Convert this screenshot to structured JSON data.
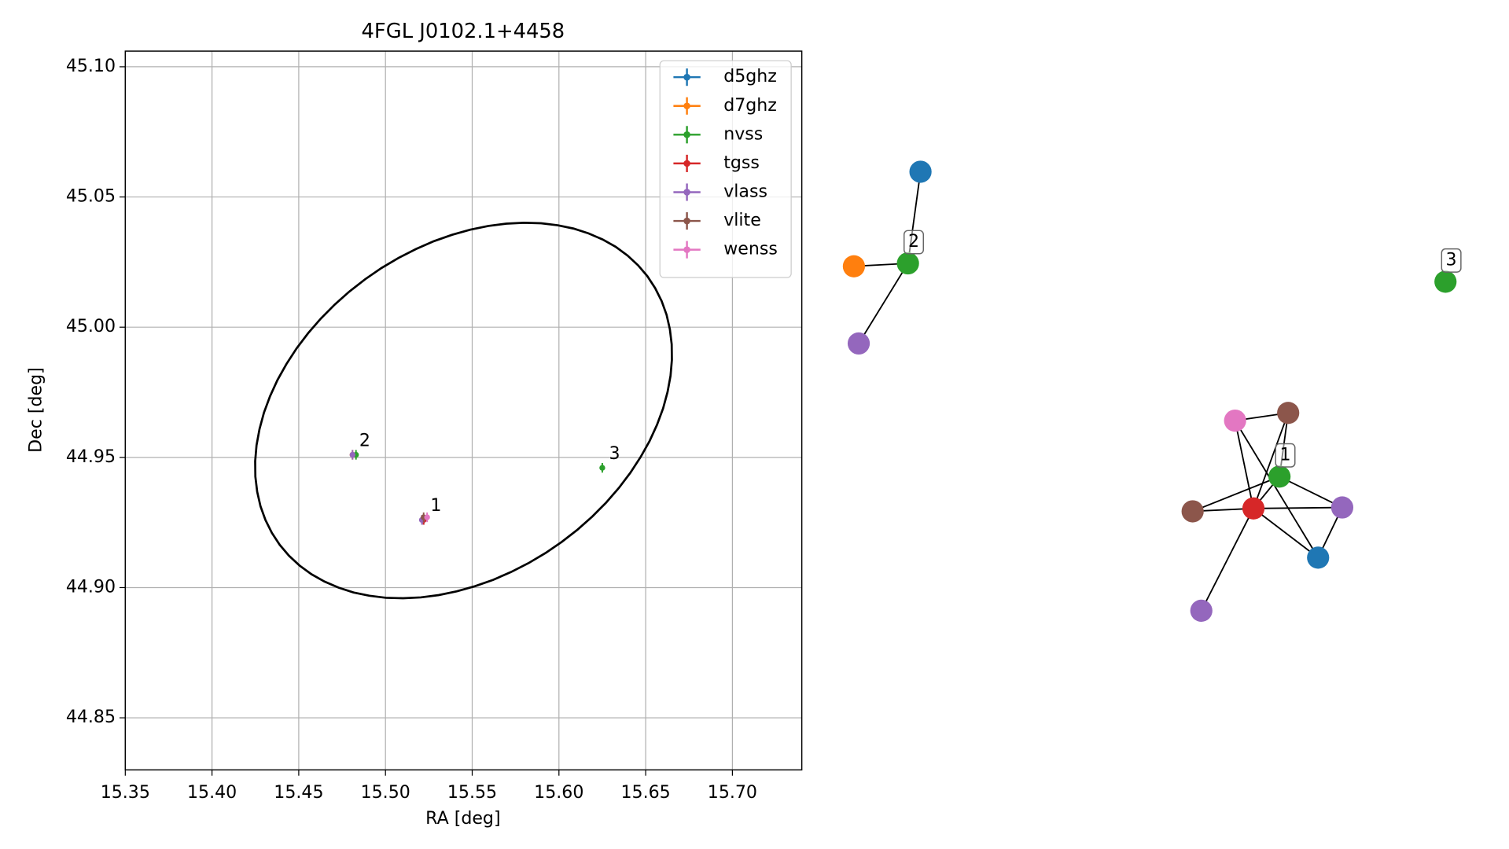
{
  "chart_data": [
    {
      "type": "scatter",
      "title": "4FGL J0102.1+4458",
      "x_label": "RA [deg]",
      "y_label": "Dec [deg]",
      "xlim": [
        15.35,
        15.74
      ],
      "ylim": [
        44.83,
        45.106
      ],
      "xticks": [
        15.35,
        {
          "value": 15.4,
          "label": "15.40"
        },
        15.45,
        {
          "value": 15.5,
          "label": "15.50"
        },
        15.55,
        {
          "value": 15.6,
          "label": "15.60"
        },
        15.65,
        {
          "value": 15.7,
          "label": "15.70"
        }
      ],
      "yticks": [
        44.85,
        {
          "value": 44.9,
          "label": "44.90"
        },
        44.95,
        {
          "value": 45.0,
          "label": "45.00"
        },
        45.05,
        {
          "value": 45.1,
          "label": "45.10"
        }
      ],
      "grid": true,
      "legend": "upper right",
      "series": [
        {
          "name": "d5ghz",
          "color": "#1f77b4",
          "x": [
            15.522
          ],
          "y": [
            44.926
          ]
        },
        {
          "name": "d7ghz",
          "color": "#ff7f0e",
          "x": [
            15.481
          ],
          "y": [
            44.951
          ]
        },
        {
          "name": "nvss",
          "color": "#2ca02c",
          "x": [
            15.483,
            15.625
          ],
          "y": [
            44.951,
            44.946
          ]
        },
        {
          "name": "tgss",
          "color": "#d62728",
          "x": [
            15.522
          ],
          "y": [
            44.926
          ]
        },
        {
          "name": "vlass",
          "color": "#9467bd",
          "x": [
            15.481,
            15.521
          ],
          "y": [
            44.951,
            44.926
          ]
        },
        {
          "name": "vlite",
          "color": "#8c564b",
          "x": [
            15.522
          ],
          "y": [
            44.927
          ]
        },
        {
          "name": "wenss",
          "color": "#e377c2",
          "x": [
            15.524
          ],
          "y": [
            44.927
          ]
        }
      ],
      "annotations": [
        {
          "text": "1",
          "x": 15.522,
          "y": 44.926
        },
        {
          "text": "2",
          "x": 15.481,
          "y": 44.951
        },
        {
          "text": "3",
          "x": 15.625,
          "y": 44.946
        }
      ],
      "ellipse": {
        "x": 15.545,
        "y": 44.968,
        "a": 0.123,
        "b": 0.0672,
        "angle": 14.7,
        "color": "#000000"
      }
    },
    {
      "type": "network",
      "nodes": [
        {
          "color": "#1f77b4"
        },
        {
          "color": "#ff7f0e"
        },
        {
          "color": "#2ca02c"
        },
        {
          "color": "#9467bd"
        },
        {
          "color": "#2ca02c"
        },
        {
          "color": "#e377c2"
        },
        {
          "color": "#8c564b"
        },
        {
          "color": "#2ca02c"
        },
        {
          "color": "#d62728"
        },
        {
          "color": "#8c564b"
        },
        {
          "color": "#9467bd"
        },
        {
          "color": "#1f77b4"
        },
        {
          "color": "#9467bd"
        }
      ],
      "edges": [
        [
          0,
          2
        ],
        [
          1,
          2
        ],
        [
          2,
          3
        ],
        [
          5,
          6
        ],
        [
          5,
          8
        ],
        [
          5,
          11
        ],
        [
          6,
          8
        ],
        [
          6,
          7
        ],
        [
          9,
          7
        ],
        [
          9,
          8
        ],
        [
          8,
          10
        ],
        [
          7,
          10
        ],
        [
          8,
          11
        ],
        [
          10,
          11
        ],
        [
          8,
          12
        ],
        [
          7,
          8
        ]
      ],
      "labels": [
        {
          "text": "2",
          "node": 2
        },
        {
          "text": "3",
          "node": 4
        },
        {
          "text": "1",
          "node": 7
        }
      ]
    }
  ]
}
